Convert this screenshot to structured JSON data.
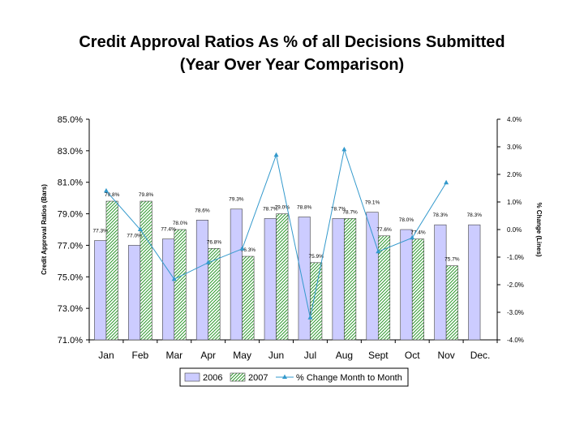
{
  "chart_data": {
    "type": "bar",
    "title": [
      "Credit Approval Ratios As % of all Decisions Submitted",
      "(Year Over Year Comparison)"
    ],
    "ylabel": "Credit Approval Ratios (Bars)",
    "y2label": "% Change (Lines)",
    "xlabel": "",
    "categories": [
      "Jan",
      "Feb",
      "Mar",
      "Apr",
      "May",
      "Jun",
      "Jul",
      "Aug",
      "Sept",
      "Oct",
      "Nov",
      "Dec."
    ],
    "ylim": [
      71.0,
      85.0
    ],
    "y2lim": [
      -4.0,
      4.0
    ],
    "yticks": [
      "71.0%",
      "73.0%",
      "75.0%",
      "77.0%",
      "79.0%",
      "81.0%",
      "83.0%",
      "85.0%"
    ],
    "y2ticks": [
      "-4.0%",
      "-3.0%",
      "-2.0%",
      "-1.0%",
      "0.0%",
      "1.0%",
      "2.0%",
      "3.0%",
      "4.0%"
    ],
    "grid": false,
    "legend_position": "bottom",
    "series": [
      {
        "name": "2006",
        "kind": "bar",
        "color": "#CCCCFF",
        "values": [
          77.3,
          77.0,
          77.4,
          78.6,
          79.3,
          78.7,
          78.8,
          78.7,
          79.1,
          78.0,
          78.3,
          78.3
        ],
        "labels": [
          "77.3%",
          "77.0%",
          "77.4%",
          "78.6%",
          "79.3%",
          "78.7%",
          "78.8%",
          "78.7%",
          "79.1%",
          "78.0%",
          "78.3%",
          "78.3%"
        ]
      },
      {
        "name": "2007",
        "kind": "bar",
        "color": "#99CC66",
        "pattern": "green-diagonal-hatch",
        "values": [
          79.8,
          79.8,
          78.0,
          76.8,
          76.3,
          79.0,
          75.9,
          78.7,
          77.6,
          77.4,
          75.7,
          null
        ],
        "labels": [
          "79.8%",
          "79.8%",
          "78.0%",
          "76.8%",
          "76.3%",
          "79.0%",
          "75.9%",
          "78.7%",
          "77.6%",
          "77.4%",
          "75.7%",
          ""
        ]
      },
      {
        "name": "% Change Month to Month",
        "kind": "line",
        "axis": "right",
        "color": "#3399CC",
        "marker": "triangle",
        "values": [
          1.4,
          0.0,
          -1.8,
          -1.2,
          -0.7,
          2.7,
          -3.2,
          2.9,
          -0.8,
          -0.3,
          1.7,
          null
        ]
      }
    ]
  }
}
